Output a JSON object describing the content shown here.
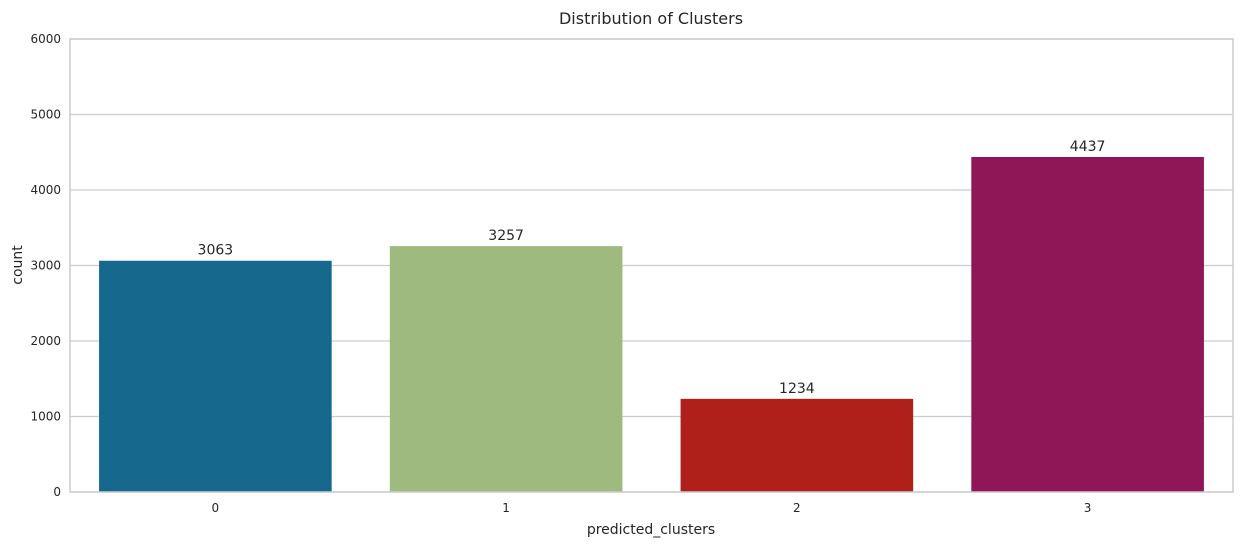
{
  "chart_data": {
    "type": "bar",
    "title": "Distribution of Clusters",
    "xlabel": "predicted_clusters",
    "ylabel": "count",
    "categories": [
      "0",
      "1",
      "2",
      "3"
    ],
    "values": [
      3063,
      3257,
      1234,
      4437
    ],
    "data_labels": [
      "3063",
      "3257",
      "1234",
      "4437"
    ],
    "ylim": [
      0,
      6000
    ],
    "yticks": [
      0,
      1000,
      2000,
      3000,
      4000,
      5000,
      6000
    ],
    "colors": [
      "#16698c",
      "#9fba7e",
      "#af201b",
      "#8f1657"
    ],
    "grid": "horizontal",
    "legend": "none"
  }
}
